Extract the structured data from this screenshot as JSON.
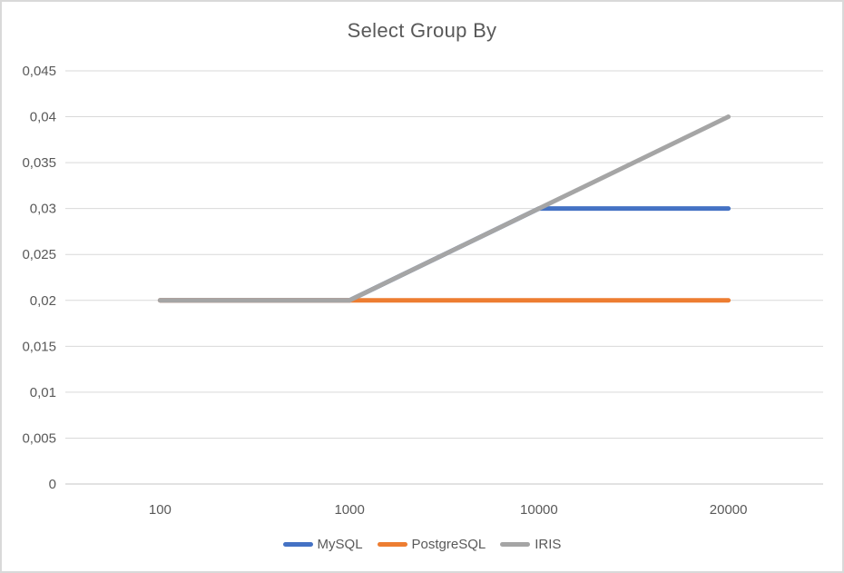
{
  "chart_data": {
    "type": "line",
    "title": "Select Group By",
    "xlabel": "",
    "ylabel": "",
    "categories": [
      "100",
      "1000",
      "10000",
      "20000"
    ],
    "series": [
      {
        "name": "MySQL",
        "color": "#4472C4",
        "values": [
          0.02,
          0.02,
          0.03,
          0.03
        ]
      },
      {
        "name": "PostgreSQL",
        "color": "#ED7D31",
        "values": [
          0.02,
          0.02,
          0.02,
          0.02
        ]
      },
      {
        "name": "IRIS",
        "color": "#A5A5A5",
        "values": [
          0.02,
          0.02,
          0.03,
          0.04
        ]
      }
    ],
    "ylim": [
      0,
      0.045
    ],
    "ytick_step": 0.005,
    "decimal_separator": ",",
    "yticks": [
      {
        "label": "0",
        "value": 0
      },
      {
        "label": "0,005",
        "value": 0.005
      },
      {
        "label": "0,01",
        "value": 0.01
      },
      {
        "label": "0,015",
        "value": 0.015
      },
      {
        "label": "0,02",
        "value": 0.02
      },
      {
        "label": "0,025",
        "value": 0.025
      },
      {
        "label": "0,03",
        "value": 0.03
      },
      {
        "label": "0,035",
        "value": 0.035
      },
      {
        "label": "0,04",
        "value": 0.04
      },
      {
        "label": "0,045",
        "value": 0.045
      }
    ],
    "grid": true,
    "legend_position": "bottom-center",
    "colors": {
      "grid": "#D9D9D9",
      "axis": "#D9D9D9",
      "text": "#595959",
      "title_text": "#595959",
      "background": "#FFFFFF",
      "frame_border": "#D9D9D9"
    }
  }
}
